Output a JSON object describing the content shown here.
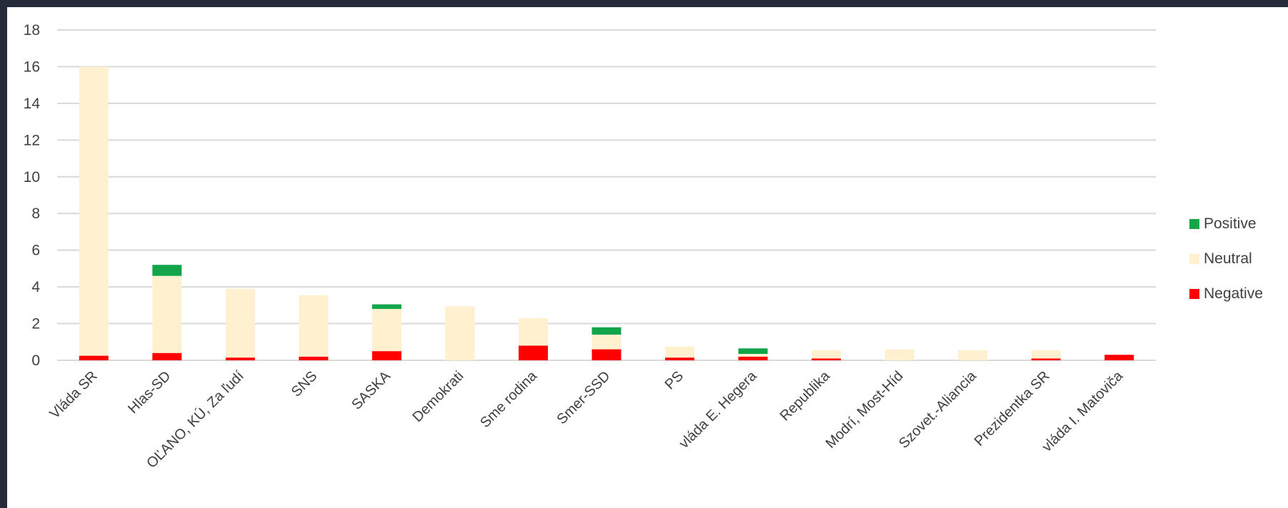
{
  "chart_data": {
    "type": "bar",
    "stacked": true,
    "categories": [
      "Vláda SR",
      "Hlas-SD",
      "OĽANO, KÚ, Za ľudí",
      "SNS",
      "SASKA",
      "Demokrati",
      "Sme rodina",
      "Smer-SSD",
      "PS",
      "vláda E. Hegera",
      "Republika",
      "Modrí, Most-Híd",
      "Szovet.-Aliancia",
      "Prezidentka SR",
      "vláda I. Matoviča"
    ],
    "series": [
      {
        "name": "Negative",
        "color": "#ff0000",
        "values": [
          0.25,
          0.4,
          0.15,
          0.2,
          0.5,
          0,
          0.8,
          0.6,
          0.15,
          0.2,
          0.1,
          0,
          0,
          0.1,
          0.3
        ]
      },
      {
        "name": "Neutral",
        "color": "#fff1cf",
        "values": [
          15.75,
          4.2,
          3.75,
          3.35,
          2.3,
          2.95,
          1.5,
          0.8,
          0.6,
          0.15,
          0.45,
          0.6,
          0.55,
          0.45,
          0
        ]
      },
      {
        "name": "Positive",
        "color": "#12a54a",
        "values": [
          0,
          0.6,
          0,
          0,
          0.25,
          0,
          0,
          0.4,
          0,
          0.3,
          0,
          0,
          0,
          0,
          0
        ]
      }
    ],
    "ylim": [
      0,
      18
    ],
    "yticks": [
      "0",
      "2",
      "4",
      "6",
      "8",
      "10",
      "12",
      "14",
      "16",
      "18"
    ],
    "grid": true,
    "legend": [
      "Positive",
      "Neutral",
      "Negative"
    ],
    "legend_position": "right"
  }
}
